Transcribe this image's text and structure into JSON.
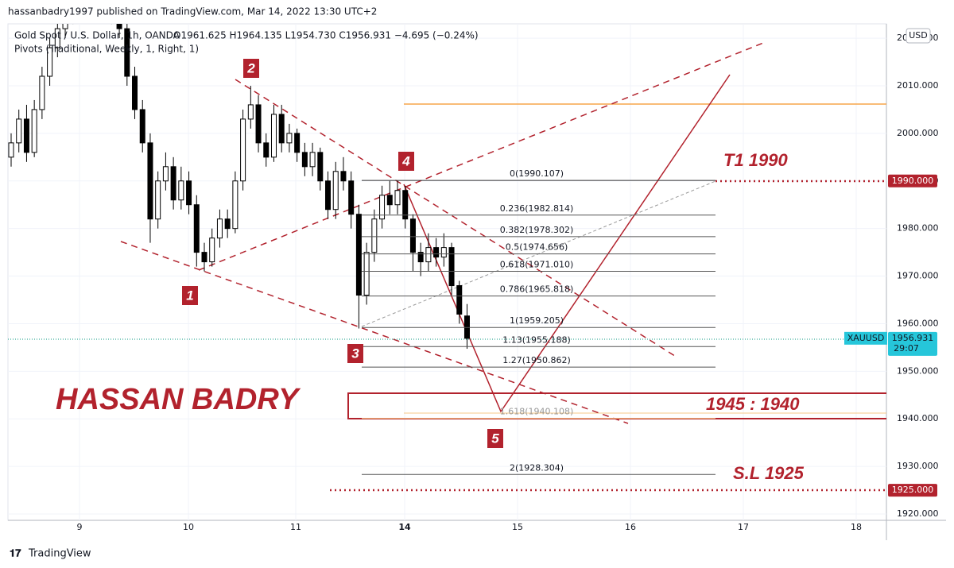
{
  "header": {
    "publisher": "hassanbadry1997 published on TradingView.com, Mar 14, 2022 13:30 UTC+2",
    "symbol": "Gold Spot / U.S. Dollar, 1h, OANDA",
    "ohlc": "O1961.625  H1964.135  L1954.730  C1956.931  −4.695 (−0.24%)",
    "indicator": "Pivots (Traditional, Weekly, 1, Right, 1)"
  },
  "price_axis": {
    "currency": "USD",
    "ylim": [
      1918.67,
      2023.02
    ],
    "ticks": [
      {
        "value": 2020,
        "label": "2020.000"
      },
      {
        "value": 2010,
        "label": "2010.000"
      },
      {
        "value": 2000,
        "label": "2000.000"
      },
      {
        "value": 1990,
        "label": "1990.000"
      },
      {
        "value": 1980,
        "label": "1980.000"
      },
      {
        "value": 1970,
        "label": "1970.000"
      },
      {
        "value": 1960,
        "label": "1960.000"
      },
      {
        "value": 1950,
        "label": "1950.000"
      },
      {
        "value": 1940,
        "label": "1940.000"
      },
      {
        "value": 1930,
        "label": "1930.000"
      },
      {
        "value": 1920,
        "label": "1920.000"
      }
    ],
    "tags": [
      {
        "value": 1990,
        "label": "1990.000"
      },
      {
        "value": 1925,
        "label": "1925.000"
      }
    ],
    "current": {
      "symbol": "XAUUSD",
      "value": 1956.931,
      "label": "1956.931",
      "countdown": "29:07"
    }
  },
  "time_axis": {
    "labels": [
      "9",
      "10",
      "11",
      "14",
      "15",
      "16",
      "17",
      "18"
    ]
  },
  "candles": [
    [
      1995,
      2000,
      1993,
      1998
    ],
    [
      1998,
      2005,
      1996,
      2003
    ],
    [
      2003,
      2006,
      1994,
      1996
    ],
    [
      1996,
      2007,
      1995,
      2005
    ],
    [
      2005,
      2014,
      2003,
      2012
    ],
    [
      2012,
      2020,
      2010,
      2018
    ],
    [
      2018,
      2024,
      2016,
      2022
    ],
    [
      2022,
      2027,
      2020,
      2025
    ],
    [
      2025,
      2028,
      2023,
      2026
    ],
    [
      2026,
      2030,
      2024,
      2028
    ],
    [
      2028,
      2030,
      2025,
      2027
    ],
    [
      2027,
      2031,
      2025,
      2029
    ],
    [
      2029,
      2030,
      2024,
      2026
    ],
    [
      2026,
      2028,
      2023,
      2025
    ],
    [
      2025,
      2026,
      2020,
      2022
    ],
    [
      2022,
      2023,
      2010,
      2012
    ],
    [
      2012,
      2014,
      2003,
      2005
    ],
    [
      2005,
      2007,
      1996,
      1998
    ],
    [
      1998,
      2000,
      1977,
      1982
    ],
    [
      1982,
      1992,
      1980,
      1990
    ],
    [
      1990,
      1996,
      1988,
      1993
    ],
    [
      1993,
      1995,
      1984,
      1986
    ],
    [
      1986,
      1993,
      1984,
      1990
    ],
    [
      1990,
      1992,
      1983,
      1985
    ],
    [
      1985,
      1987,
      1972,
      1975
    ],
    [
      1975,
      1977,
      1971,
      1973
    ],
    [
      1973,
      1980,
      1972,
      1978
    ],
    [
      1978,
      1984,
      1976,
      1982
    ],
    [
      1982,
      1984,
      1978,
      1980
    ],
    [
      1980,
      1992,
      1979,
      1990
    ],
    [
      1990,
      2005,
      1988,
      2003
    ],
    [
      2003,
      2010,
      2001,
      2006
    ],
    [
      2006,
      2008,
      1996,
      1998
    ],
    [
      1998,
      2000,
      1993,
      1995
    ],
    [
      1995,
      2006,
      1994,
      2004
    ],
    [
      2004,
      2006,
      1996,
      1998
    ],
    [
      1998,
      2002,
      1996,
      2000
    ],
    [
      2000,
      2001,
      1994,
      1996
    ],
    [
      1996,
      1998,
      1991,
      1993
    ],
    [
      1993,
      1998,
      1991,
      1996
    ],
    [
      1996,
      1997,
      1988,
      1990
    ],
    [
      1990,
      1992,
      1982,
      1984
    ],
    [
      1984,
      1994,
      1982,
      1992
    ],
    [
      1992,
      1995,
      1988,
      1990
    ],
    [
      1990,
      1992,
      1980,
      1983
    ],
    [
      1983,
      1985,
      1959,
      1966
    ],
    [
      1966,
      1977,
      1964,
      1975
    ],
    [
      1975,
      1984,
      1973,
      1982
    ],
    [
      1982,
      1989,
      1980,
      1987
    ],
    [
      1987,
      1990,
      1983,
      1985
    ],
    [
      1985,
      1990,
      1983,
      1988
    ],
    [
      1988,
      1989,
      1980,
      1982
    ],
    [
      1982,
      1983,
      1971,
      1975
    ],
    [
      1975,
      1977,
      1970,
      1973
    ],
    [
      1973,
      1979,
      1971,
      1976
    ],
    [
      1976,
      1978,
      1972,
      1974
    ],
    [
      1974,
      1979,
      1972,
      1976
    ],
    [
      1976,
      1977,
      1966,
      1968
    ],
    [
      1968,
      1969,
      1960,
      1962
    ],
    [
      1961.625,
      1964.135,
      1954.73,
      1956.931
    ]
  ],
  "fib_levels": [
    {
      "label": "0(1990.107)",
      "value": 1990.107
    },
    {
      "label": "0.236(1982.814)",
      "value": 1982.814
    },
    {
      "label": "0.382(1978.302)",
      "value": 1978.302
    },
    {
      "label": "0.5(1974.656)",
      "value": 1974.656
    },
    {
      "label": "0.618(1971.010)",
      "value": 1971.01
    },
    {
      "label": "0.786(1965.818)",
      "value": 1965.818
    },
    {
      "label": "1(1959.205)",
      "value": 1959.205
    },
    {
      "label": "1.13(1955.188)",
      "value": 1955.188
    },
    {
      "label": "1.27(1950.862)",
      "value": 1950.862
    },
    {
      "label": "1.618(1940.108)",
      "value": 1940.108
    },
    {
      "label": "2(1928.304)",
      "value": 1928.304
    }
  ],
  "annotations": {
    "waves": [
      "1",
      "2",
      "3",
      "4",
      "5"
    ],
    "target": "T1 1990",
    "zone": "1945 : 1940",
    "stop_loss": "S.L  1925",
    "author": "HASSAN BADRY"
  },
  "footer": {
    "brand": "TradingView"
  }
}
